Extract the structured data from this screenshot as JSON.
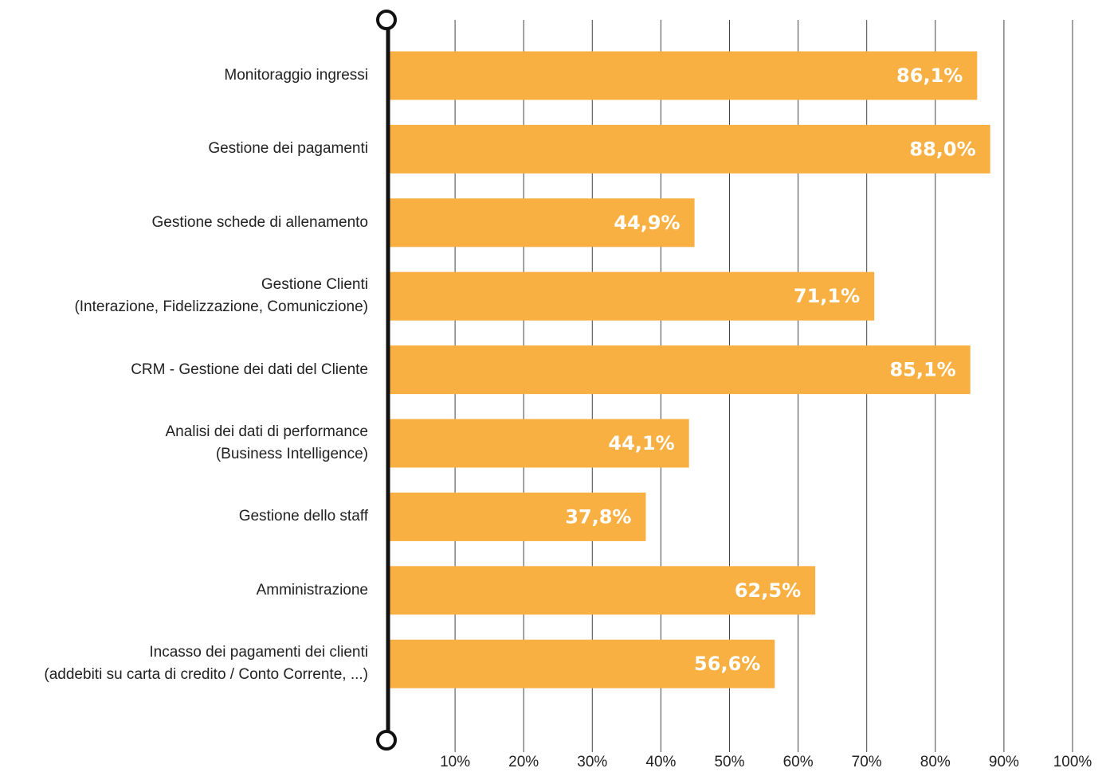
{
  "chart_data": {
    "type": "barh",
    "categories": [
      "Monitoraggio ingressi",
      "Gestione dei pagamenti",
      "Gestione schede di allenamento",
      "Gestione Clienti\n(Interazione, Fidelizzazione, Comuniczione)",
      "CRM - Gestione dei dati del Cliente",
      "Analisi dei dati di performance\n(Business Intelligence)",
      "Gestione dello staff",
      "Amministrazione",
      "Incasso dei pagamenti dei clienti\n(addebiti su carta di credito / Conto Corrente, ...)"
    ],
    "values": [
      86.1,
      88.0,
      44.9,
      71.1,
      85.1,
      44.1,
      37.8,
      62.5,
      56.6
    ],
    "value_labels": [
      "86,1%",
      "88,0%",
      "44,9%",
      "71,1%",
      "85,1%",
      "44,1%",
      "37,8%",
      "62,5%",
      "56,6%"
    ],
    "color": "#f9b043",
    "xlim": [
      0,
      100
    ],
    "xticks": [
      {
        "value": 10,
        "label": "10%"
      },
      {
        "value": 20,
        "label": "20%"
      },
      {
        "value": 30,
        "label": "30%"
      },
      {
        "value": 40,
        "label": "40%"
      },
      {
        "value": 50,
        "label": "50%"
      },
      {
        "value": 60,
        "label": "60%"
      },
      {
        "value": 70,
        "label": "70%"
      },
      {
        "value": 80,
        "label": "80%"
      },
      {
        "value": 90,
        "label": "90%"
      },
      {
        "value": 100,
        "label": "100%"
      }
    ],
    "grid": true
  }
}
